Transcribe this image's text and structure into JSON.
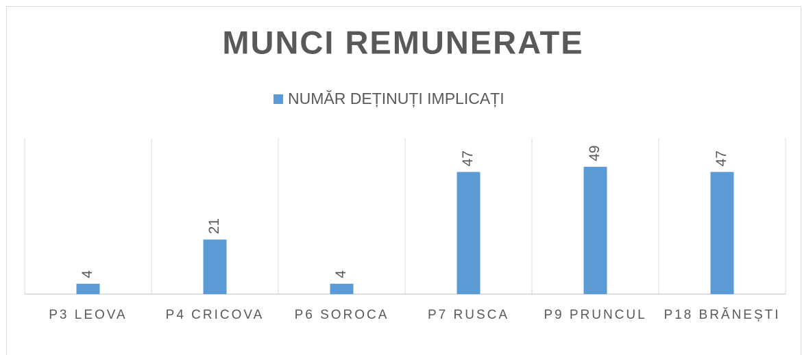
{
  "chart_data": {
    "type": "bar",
    "title": "MUNCI REMUNERATE",
    "categories": [
      "P3 LEOVA",
      "P4 CRICOVA",
      "P6 SOROCA",
      "P7 RUSCA",
      "P9 PRUNCUL",
      "P18 BRĂNEȘTI"
    ],
    "series": [
      {
        "name": "NUMĂR DEȚINUȚI IMPLICAȚI",
        "color": "#5b9bd5",
        "values": [
          4,
          21,
          4,
          47,
          49,
          47
        ]
      }
    ],
    "ylim": [
      0,
      60
    ],
    "legend": "top"
  }
}
